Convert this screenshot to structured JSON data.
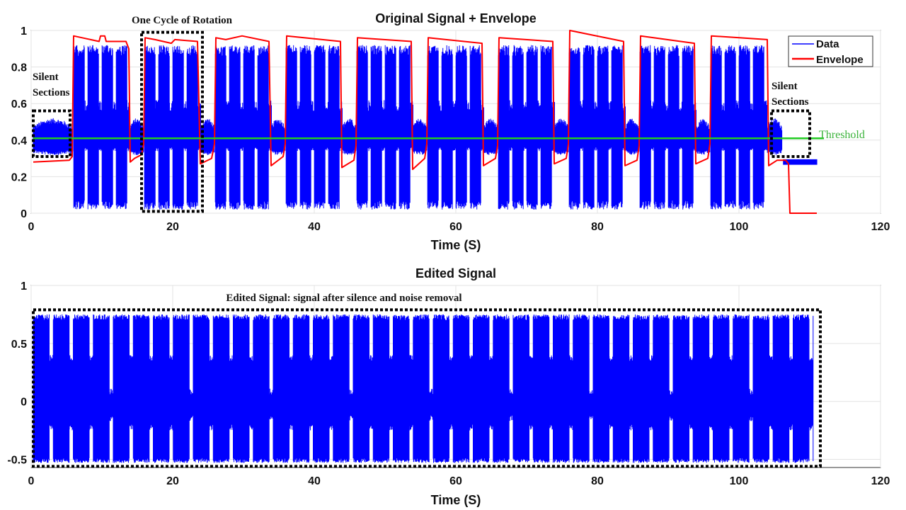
{
  "chart_data": [
    {
      "type": "line",
      "title": "Original Signal + Envelope",
      "xlabel": "Time (S)",
      "ylabel": "",
      "xlim": [
        0,
        120
      ],
      "ylim": [
        0,
        1
      ],
      "xticks": [
        "0",
        "20",
        "40",
        "60",
        "80",
        "100",
        "120"
      ],
      "yticks": [
        "0",
        "0.2",
        "0.4",
        "0.6",
        "0.8",
        "1"
      ],
      "grid": true,
      "legend_position": "top-right",
      "series": [
        {
          "name": "Data",
          "color": "#0000ff",
          "bursts": [
            [
              5.9,
              13.9
            ],
            [
              15.9,
              23.9
            ],
            [
              25.9,
              33.9
            ],
            [
              35.9,
              43.9
            ],
            [
              45.9,
              53.9
            ],
            [
              55.9,
              63.9
            ],
            [
              65.9,
              73.9
            ],
            [
              75.9,
              83.9
            ],
            [
              85.9,
              93.9
            ],
            [
              95.9,
              103.9
            ]
          ],
          "burst_range": [
            0.02,
            0.96
          ],
          "quiet_level": 0.41,
          "tail": {
            "x": [
              106.3,
              111.0
            ],
            "y": 0.28
          }
        },
        {
          "name": "Envelope",
          "color": "#ff0000",
          "points": [
            [
              0.3,
              0.28
            ],
            [
              5.4,
              0.29
            ],
            [
              5.8,
              0.31
            ],
            [
              6.0,
              0.97
            ],
            [
              7.2,
              0.96
            ],
            [
              9.6,
              0.94
            ],
            [
              9.8,
              0.97
            ],
            [
              10.4,
              0.97
            ],
            [
              10.6,
              0.94
            ],
            [
              13.4,
              0.94
            ],
            [
              13.8,
              0.9
            ],
            [
              14.0,
              0.28
            ],
            [
              14.6,
              0.3
            ],
            [
              15.6,
              0.32
            ],
            [
              15.9,
              0.38
            ],
            [
              16.1,
              0.96
            ],
            [
              17.5,
              0.95
            ],
            [
              19.8,
              0.93
            ],
            [
              20.3,
              0.95
            ],
            [
              23.5,
              0.94
            ],
            [
              23.9,
              0.27
            ],
            [
              25.5,
              0.3
            ],
            [
              25.9,
              0.38
            ],
            [
              26.1,
              0.96
            ],
            [
              27.5,
              0.95
            ],
            [
              29.8,
              0.97
            ],
            [
              33.6,
              0.94
            ],
            [
              33.9,
              0.26
            ],
            [
              35.6,
              0.31
            ],
            [
              35.9,
              0.38
            ],
            [
              36.1,
              0.97
            ],
            [
              43.7,
              0.94
            ],
            [
              43.9,
              0.25
            ],
            [
              45.6,
              0.29
            ],
            [
              45.9,
              0.37
            ],
            [
              46.1,
              0.96
            ],
            [
              53.7,
              0.94
            ],
            [
              53.9,
              0.24
            ],
            [
              55.6,
              0.3
            ],
            [
              55.9,
              0.38
            ],
            [
              56.1,
              0.96
            ],
            [
              63.7,
              0.93
            ],
            [
              63.9,
              0.26
            ],
            [
              65.6,
              0.3
            ],
            [
              65.9,
              0.37
            ],
            [
              66.1,
              0.96
            ],
            [
              73.7,
              0.94
            ],
            [
              73.9,
              0.27
            ],
            [
              75.6,
              0.3
            ],
            [
              75.9,
              0.38
            ],
            [
              76.1,
              1.0
            ],
            [
              83.7,
              0.94
            ],
            [
              83.9,
              0.26
            ],
            [
              85.6,
              0.29
            ],
            [
              85.9,
              0.37
            ],
            [
              86.1,
              0.97
            ],
            [
              93.7,
              0.93
            ],
            [
              93.9,
              0.27
            ],
            [
              95.6,
              0.3
            ],
            [
              95.9,
              0.38
            ],
            [
              96.1,
              0.97
            ],
            [
              104.0,
              0.95
            ],
            [
              104.2,
              0.26
            ],
            [
              105.4,
              0.29
            ],
            [
              106.6,
              0.29
            ],
            [
              107.0,
              0.27
            ],
            [
              107.2,
              0.0
            ],
            [
              111.0,
              0.0
            ]
          ]
        },
        {
          "name": "Threshold",
          "color": "#22cc22",
          "y": 0.41,
          "x": [
            0.3,
            110.0
          ]
        }
      ],
      "annotations": [
        {
          "text": "One Cycle of Rotation",
          "x": [
            15.6,
            24.2
          ],
          "y": [
            0.01,
            0.99
          ]
        },
        {
          "text": "Silent",
          "line2": "Sections",
          "x": [
            0.3,
            5.5
          ],
          "y": [
            0.31,
            0.56
          ]
        },
        {
          "text": "Silent",
          "line2": "Sections",
          "x": [
            104.6,
            110.0
          ],
          "y": [
            0.31,
            0.56
          ]
        },
        {
          "text": "Threshold"
        }
      ]
    },
    {
      "type": "line",
      "title": "Edited Signal",
      "xlabel": "Time (S)",
      "ylabel": "",
      "xlim": [
        0,
        120
      ],
      "ylim": [
        -0.57,
        1
      ],
      "xticks": [
        "0",
        "20",
        "40",
        "60",
        "80",
        "100",
        "120"
      ],
      "yticks": [
        "-0.5",
        "0",
        "0.5",
        "1"
      ],
      "grid": true,
      "series": [
        {
          "name": "Edited Signal",
          "color": "#0000ff",
          "cycle_period": 11.3,
          "range": [
            -0.53,
            0.75
          ],
          "x": [
            0.3,
            110.5
          ]
        }
      ],
      "annotations": [
        {
          "text": "Edited Signal: signal after silence and noise removal",
          "x": [
            0.3,
            111.5
          ],
          "y": [
            -0.56,
            0.79
          ]
        }
      ]
    }
  ]
}
